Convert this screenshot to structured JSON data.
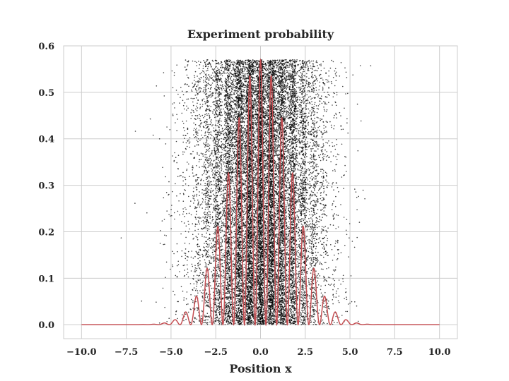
{
  "chart_data": {
    "type": "scatter",
    "title": "Experiment probability",
    "xlabel": "Position x",
    "ylabel": "",
    "xlim": [
      -11.0,
      11.0
    ],
    "ylim": [
      -0.03,
      0.6
    ],
    "xticks": [
      -10.0,
      -7.5,
      -5.0,
      -2.5,
      0.0,
      2.5,
      5.0,
      7.5,
      10.0
    ],
    "xtick_labels": [
      "−10.0",
      "−7.5",
      "−5.0",
      "−2.5",
      "0.0",
      "2.5",
      "5.0",
      "7.5",
      "10.0"
    ],
    "yticks": [
      0.0,
      0.1,
      0.2,
      0.3,
      0.4,
      0.5,
      0.6
    ],
    "ytick_labels": [
      "0.0",
      "0.1",
      "0.2",
      "0.3",
      "0.4",
      "0.5",
      "0.6"
    ],
    "grid": true,
    "scatter": {
      "color": "#000000",
      "y_max": 0.57,
      "point_count": 20000
    },
    "curve": {
      "color": "#c44e52",
      "x_range": [
        -10.0,
        10.0
      ],
      "peak": 0.57,
      "gauss_sigma": 1.7,
      "fringe_spacing": 0.6,
      "approx_peaks": [
        {
          "x": 0.0,
          "y": 0.57
        },
        {
          "x": 0.6,
          "y": 0.5
        },
        {
          "x": -0.6,
          "y": 0.5
        },
        {
          "x": 1.2,
          "y": 0.38
        },
        {
          "x": -1.2,
          "y": 0.38
        },
        {
          "x": 1.8,
          "y": 0.26
        },
        {
          "x": -1.8,
          "y": 0.26
        },
        {
          "x": 2.4,
          "y": 0.16
        },
        {
          "x": -2.4,
          "y": 0.16
        },
        {
          "x": 3.0,
          "y": 0.1
        },
        {
          "x": -3.0,
          "y": 0.1
        }
      ]
    }
  }
}
